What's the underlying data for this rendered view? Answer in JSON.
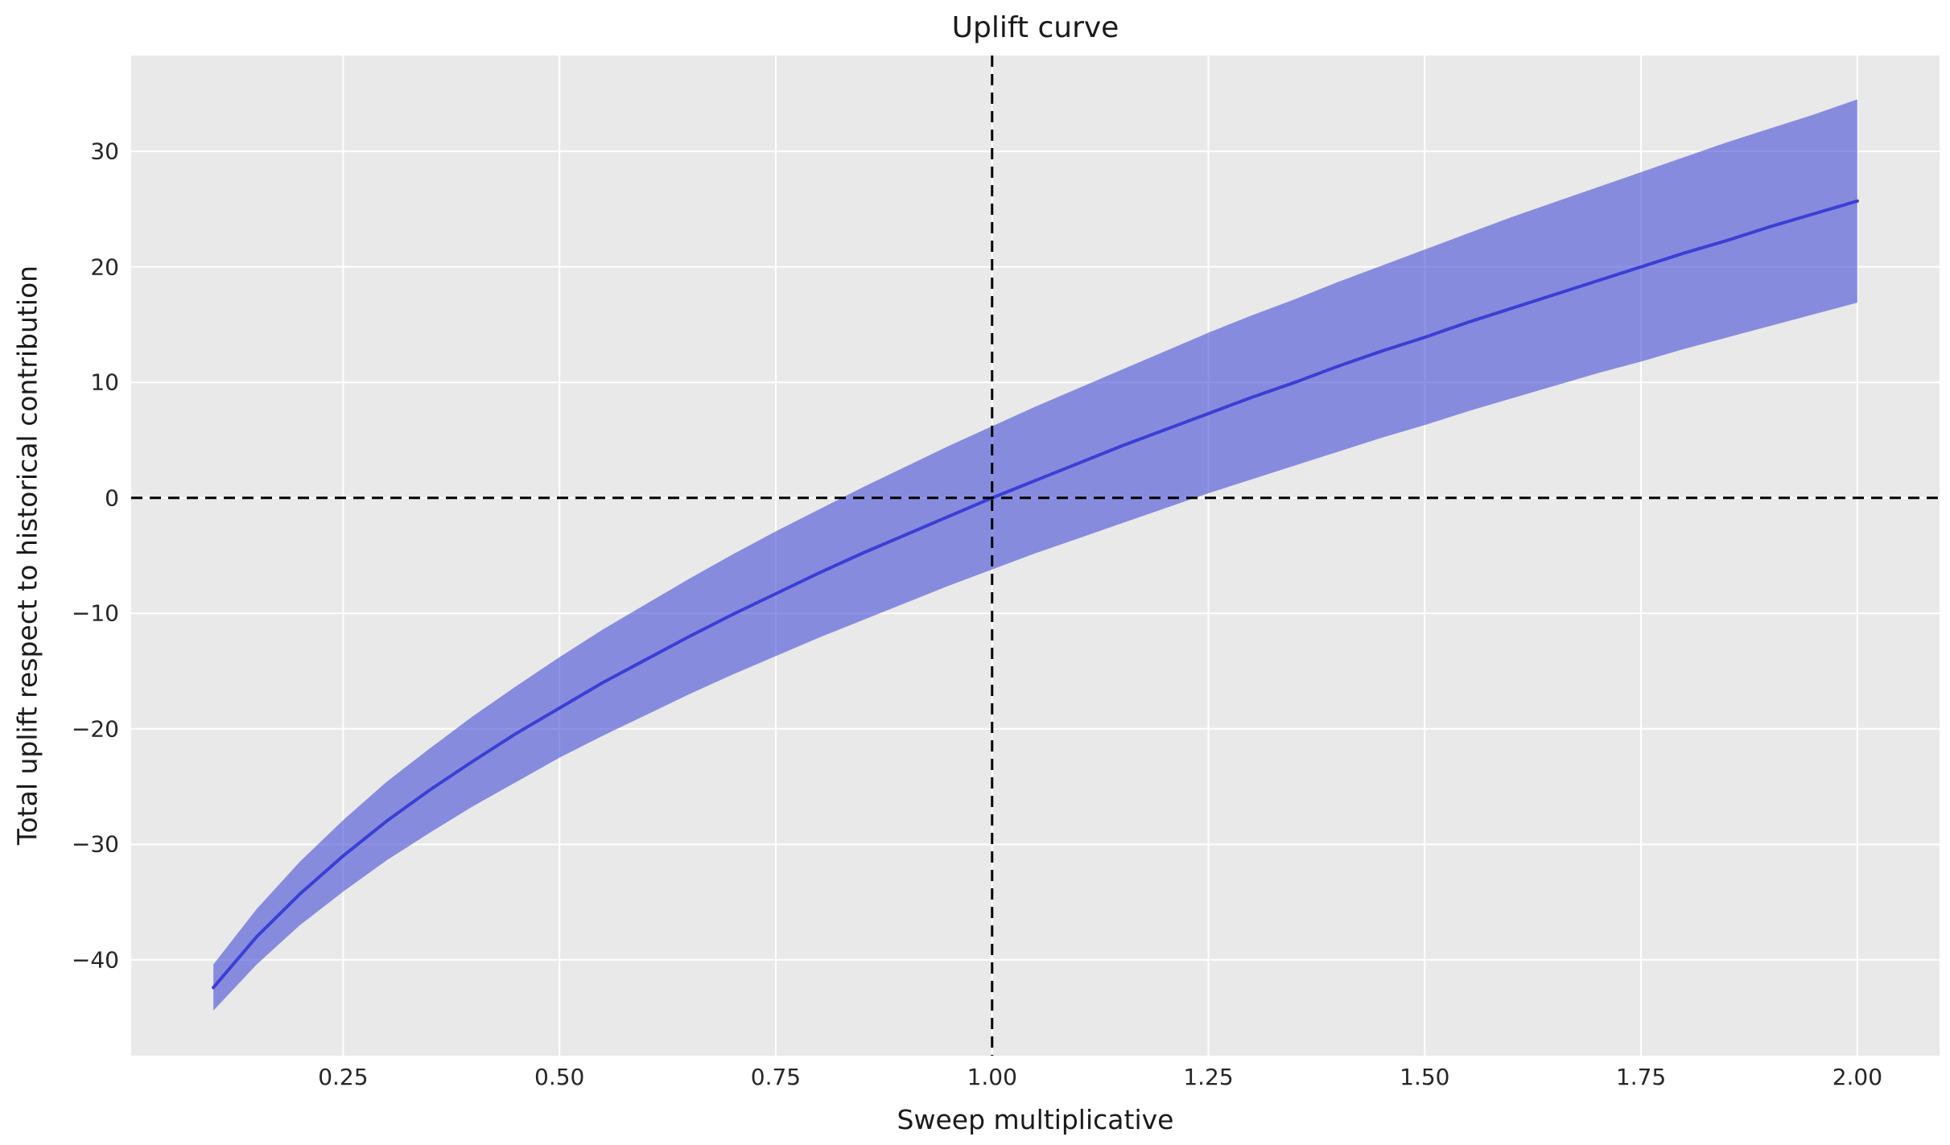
{
  "chart_data": {
    "type": "line",
    "title": "Uplift curve",
    "xlabel": "Sweep multiplicative",
    "ylabel": "Total uplift respect to historical contribution",
    "xlim": [
      0.005,
      2.095
    ],
    "ylim": [
      -48.3,
      38.3
    ],
    "grid": true,
    "legend": "none",
    "x_ticks": [
      0.25,
      0.5,
      0.75,
      1.0,
      1.25,
      1.5,
      1.75,
      2.0
    ],
    "x_tick_labels": [
      "0.25",
      "0.50",
      "0.75",
      "1.00",
      "1.25",
      "1.50",
      "1.75",
      "2.00"
    ],
    "y_ticks": [
      -40,
      -30,
      -20,
      -10,
      0,
      10,
      20,
      30
    ],
    "y_tick_labels": [
      "−40",
      "−30",
      "−20",
      "−10",
      "0",
      "10",
      "20",
      "30"
    ],
    "reference_lines": {
      "horizontal_y": 0,
      "vertical_x": 1.0
    },
    "x": [
      0.1,
      0.15,
      0.2,
      0.25,
      0.3,
      0.35,
      0.4,
      0.45,
      0.5,
      0.55,
      0.6,
      0.65,
      0.7,
      0.75,
      0.8,
      0.85,
      0.9,
      0.95,
      1.0,
      1.05,
      1.1,
      1.15,
      1.2,
      1.25,
      1.3,
      1.35,
      1.4,
      1.45,
      1.5,
      1.55,
      1.6,
      1.65,
      1.7,
      1.75,
      1.8,
      1.85,
      1.9,
      1.95,
      2.0
    ],
    "series": [
      {
        "name": "uplift_mean",
        "values": [
          -42.4,
          -38.0,
          -34.3,
          -31.0,
          -28.0,
          -25.3,
          -22.8,
          -20.4,
          -18.2,
          -16.0,
          -14.0,
          -12.0,
          -10.1,
          -8.3,
          -6.5,
          -4.8,
          -3.2,
          -1.6,
          0.0,
          1.5,
          3.0,
          4.5,
          5.9,
          7.3,
          8.7,
          10.0,
          11.4,
          12.7,
          13.9,
          15.2,
          16.4,
          17.6,
          18.8,
          20.0,
          21.2,
          22.3,
          23.5,
          24.6,
          25.7
        ]
      },
      {
        "name": "ci_lower",
        "values": [
          -44.4,
          -40.4,
          -37.0,
          -34.1,
          -31.4,
          -29.0,
          -26.7,
          -24.6,
          -22.5,
          -20.6,
          -18.8,
          -17.0,
          -15.3,
          -13.7,
          -12.1,
          -10.6,
          -9.1,
          -7.6,
          -6.2,
          -4.8,
          -3.5,
          -2.2,
          -0.9,
          0.4,
          1.6,
          2.8,
          4.0,
          5.2,
          6.3,
          7.5,
          8.6,
          9.7,
          10.8,
          11.8,
          12.9,
          13.9,
          14.9,
          15.9,
          16.9
        ]
      },
      {
        "name": "ci_upper",
        "values": [
          -40.4,
          -35.6,
          -31.5,
          -27.9,
          -24.6,
          -21.7,
          -18.9,
          -16.3,
          -13.8,
          -11.4,
          -9.2,
          -7.0,
          -4.9,
          -2.9,
          -1.0,
          0.9,
          2.7,
          4.5,
          6.2,
          7.9,
          9.5,
          11.1,
          12.7,
          14.3,
          15.8,
          17.2,
          18.7,
          20.1,
          21.5,
          22.9,
          24.3,
          25.6,
          26.9,
          28.2,
          29.5,
          30.8,
          32.0,
          33.2,
          34.5
        ]
      }
    ],
    "colors": {
      "line": "#3a3fd4",
      "band": "rgba(63, 70, 214, 0.58)",
      "grid": "#ffffff",
      "plot_background": "#e9e9e9",
      "figure_background": "#ffffff",
      "reference_line": "#000000",
      "text": "#262626"
    }
  }
}
